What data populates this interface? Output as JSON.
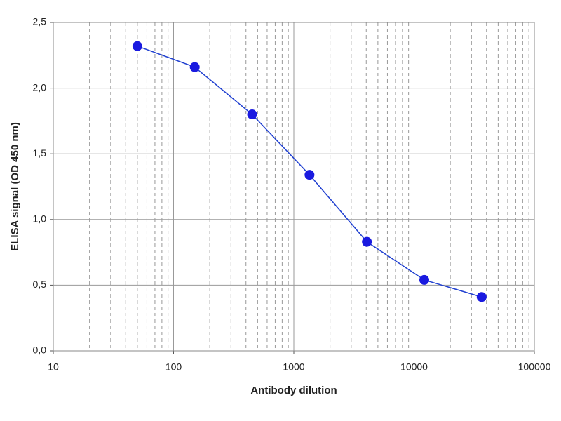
{
  "chart_data": {
    "type": "line",
    "x_label": "Antibody dilution",
    "y_label": "ELISA signal (OD 450 nm)",
    "x": [
      50,
      150,
      450,
      1350,
      4050,
      12150,
      36450
    ],
    "series": [
      {
        "name": "ELISA signal",
        "color": "#1f3fd0",
        "marker_color": "#1a1ae0",
        "values": [
          2.32,
          2.16,
          1.8,
          1.34,
          0.83,
          0.54,
          0.41
        ]
      }
    ],
    "x_scale": "log",
    "xlim": [
      10,
      100000
    ],
    "xticks": [
      10,
      100,
      1000,
      10000,
      100000
    ],
    "ylim": [
      0,
      2.5
    ],
    "yticks": [
      {
        "value": 0,
        "label": "0,0"
      },
      {
        "value": 0.5,
        "label": "0,5"
      },
      {
        "value": 1,
        "label": "1,0"
      },
      {
        "value": 1.5,
        "label": "1,5"
      },
      {
        "value": 2,
        "label": "2,0"
      },
      {
        "value": 2.5,
        "label": "2,5"
      }
    ],
    "grid": true,
    "minor_grid": true,
    "legend": false
  }
}
